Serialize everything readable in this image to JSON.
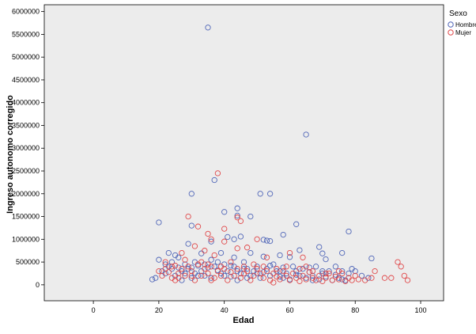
{
  "chart_data": {
    "type": "scatter",
    "xlabel": "Edad",
    "ylabel": "Ingreso autonomo corregido",
    "xlim": [
      -15,
      107
    ],
    "ylim": [
      -350000,
      6150000
    ],
    "xticks": [
      0,
      20,
      40,
      60,
      80,
      100
    ],
    "yticks": [
      0,
      500000,
      1000000,
      1500000,
      2000000,
      2500000,
      3000000,
      3500000,
      4000000,
      4500000,
      5000000,
      5500000,
      6000000
    ],
    "grid": false,
    "legend": {
      "title": "Sexo",
      "position": "top-right"
    },
    "colors": {
      "plot_bg": "#ececec",
      "axis": "#000000",
      "Hombre": "#5066b8",
      "Mujer": "#e0484a"
    },
    "series": [
      {
        "name": "Hombre",
        "points": [
          [
            35,
            5650000
          ],
          [
            65,
            3300000
          ],
          [
            37,
            2300000
          ],
          [
            30,
            2000000
          ],
          [
            51,
            2000000
          ],
          [
            54,
            2000000
          ],
          [
            44,
            1680000
          ],
          [
            40,
            1600000
          ],
          [
            44,
            1520000
          ],
          [
            48,
            1500000
          ],
          [
            20,
            1370000
          ],
          [
            30,
            1300000
          ],
          [
            62,
            1330000
          ],
          [
            78,
            1170000
          ],
          [
            58,
            1100000
          ],
          [
            41,
            1050000
          ],
          [
            43,
            1000000
          ],
          [
            45,
            1060000
          ],
          [
            52,
            990000
          ],
          [
            53,
            970000
          ],
          [
            54,
            960000
          ],
          [
            36,
            950000
          ],
          [
            29,
            900000
          ],
          [
            69,
            830000
          ],
          [
            63,
            760000
          ],
          [
            70,
            690000
          ],
          [
            23,
            700000
          ],
          [
            33,
            690000
          ],
          [
            48,
            700000
          ],
          [
            57,
            650000
          ],
          [
            25,
            650000
          ],
          [
            39,
            700000
          ],
          [
            43,
            600000
          ],
          [
            52,
            620000
          ],
          [
            60,
            610000
          ],
          [
            71,
            560000
          ],
          [
            76,
            700000
          ],
          [
            85,
            580000
          ],
          [
            18,
            120000
          ],
          [
            19,
            150000
          ],
          [
            21,
            300000
          ],
          [
            22,
            250000
          ],
          [
            23,
            400000
          ],
          [
            24,
            500000
          ],
          [
            25,
            200000
          ],
          [
            26,
            380000
          ],
          [
            27,
            300000
          ],
          [
            28,
            450000
          ],
          [
            29,
            350000
          ],
          [
            30,
            150000
          ],
          [
            31,
            500000
          ],
          [
            32,
            420000
          ],
          [
            33,
            300000
          ],
          [
            34,
            200000
          ],
          [
            35,
            380000
          ],
          [
            36,
            550000
          ],
          [
            38,
            320000
          ],
          [
            39,
            250000
          ],
          [
            40,
            450000
          ],
          [
            41,
            300000
          ],
          [
            42,
            180000
          ],
          [
            43,
            400000
          ],
          [
            44,
            300000
          ],
          [
            45,
            250000
          ],
          [
            46,
            500000
          ],
          [
            47,
            350000
          ],
          [
            48,
            200000
          ],
          [
            49,
            300000
          ],
          [
            50,
            400000
          ],
          [
            51,
            150000
          ],
          [
            52,
            280000
          ],
          [
            53,
            350000
          ],
          [
            54,
            200000
          ],
          [
            55,
            450000
          ],
          [
            56,
            300000
          ],
          [
            57,
            180000
          ],
          [
            58,
            380000
          ],
          [
            59,
            250000
          ],
          [
            60,
            120000
          ],
          [
            61,
            400000
          ],
          [
            62,
            300000
          ],
          [
            63,
            200000
          ],
          [
            64,
            350000
          ],
          [
            65,
            150000
          ],
          [
            66,
            280000
          ],
          [
            67,
            200000
          ],
          [
            68,
            400000
          ],
          [
            69,
            120000
          ],
          [
            70,
            250000
          ],
          [
            71,
            180000
          ],
          [
            72,
            300000
          ],
          [
            73,
            100000
          ],
          [
            74,
            220000
          ],
          [
            75,
            150000
          ],
          [
            76,
            300000
          ],
          [
            77,
            100000
          ],
          [
            78,
            250000
          ],
          [
            80,
            300000
          ],
          [
            82,
            200000
          ],
          [
            84,
            150000
          ],
          [
            20,
            550000
          ],
          [
            22,
            450000
          ],
          [
            24,
            350000
          ],
          [
            26,
            600000
          ],
          [
            28,
            250000
          ],
          [
            30,
            380000
          ],
          [
            32,
            200000
          ],
          [
            34,
            450000
          ],
          [
            36,
            150000
          ],
          [
            38,
            500000
          ],
          [
            40,
            200000
          ],
          [
            42,
            420000
          ],
          [
            44,
            100000
          ],
          [
            46,
            350000
          ],
          [
            50,
            250000
          ],
          [
            54,
            420000
          ],
          [
            58,
            150000
          ],
          [
            62,
            220000
          ],
          [
            66,
            380000
          ],
          [
            70,
            300000
          ],
          [
            74,
            400000
          ],
          [
            76,
            120000
          ],
          [
            79,
            350000
          ],
          [
            27,
            100000
          ],
          [
            31,
            250000
          ],
          [
            37,
            400000
          ],
          [
            47,
            150000
          ],
          [
            57,
            300000
          ],
          [
            67,
            100000
          ]
        ]
      },
      {
        "name": "Mujer",
        "points": [
          [
            38,
            2450000
          ],
          [
            29,
            1500000
          ],
          [
            44,
            1480000
          ],
          [
            45,
            1400000
          ],
          [
            32,
            1280000
          ],
          [
            40,
            1230000
          ],
          [
            35,
            1120000
          ],
          [
            36,
            1000000
          ],
          [
            50,
            1000000
          ],
          [
            40,
            950000
          ],
          [
            47,
            820000
          ],
          [
            44,
            800000
          ],
          [
            31,
            850000
          ],
          [
            27,
            700000
          ],
          [
            34,
            750000
          ],
          [
            60,
            700000
          ],
          [
            37,
            650000
          ],
          [
            53,
            600000
          ],
          [
            64,
            600000
          ],
          [
            93,
            500000
          ],
          [
            94,
            400000
          ],
          [
            95,
            200000
          ],
          [
            96,
            100000
          ],
          [
            86,
            300000
          ],
          [
            89,
            150000
          ],
          [
            91,
            150000
          ],
          [
            20,
            300000
          ],
          [
            21,
            200000
          ],
          [
            22,
            350000
          ],
          [
            23,
            280000
          ],
          [
            24,
            150000
          ],
          [
            25,
            420000
          ],
          [
            26,
            250000
          ],
          [
            27,
            350000
          ],
          [
            28,
            200000
          ],
          [
            29,
            400000
          ],
          [
            30,
            300000
          ],
          [
            31,
            100000
          ],
          [
            32,
            450000
          ],
          [
            33,
            200000
          ],
          [
            34,
            350000
          ],
          [
            35,
            250000
          ],
          [
            36,
            400000
          ],
          [
            37,
            150000
          ],
          [
            38,
            300000
          ],
          [
            39,
            200000
          ],
          [
            40,
            350000
          ],
          [
            41,
            100000
          ],
          [
            42,
            280000
          ],
          [
            43,
            200000
          ],
          [
            44,
            350000
          ],
          [
            45,
            150000
          ],
          [
            46,
            250000
          ],
          [
            47,
            300000
          ],
          [
            48,
            100000
          ],
          [
            49,
            200000
          ],
          [
            50,
            350000
          ],
          [
            51,
            250000
          ],
          [
            52,
            150000
          ],
          [
            53,
            300000
          ],
          [
            54,
            100000
          ],
          [
            55,
            250000
          ],
          [
            56,
            180000
          ],
          [
            57,
            120000
          ],
          [
            58,
            300000
          ],
          [
            59,
            200000
          ],
          [
            60,
            100000
          ],
          [
            61,
            250000
          ],
          [
            62,
            150000
          ],
          [
            63,
            80000
          ],
          [
            64,
            200000
          ],
          [
            65,
            120000
          ],
          [
            66,
            280000
          ],
          [
            67,
            150000
          ],
          [
            68,
            100000
          ],
          [
            69,
            200000
          ],
          [
            70,
            80000
          ],
          [
            71,
            150000
          ],
          [
            72,
            250000
          ],
          [
            73,
            100000
          ],
          [
            74,
            180000
          ],
          [
            75,
            120000
          ],
          [
            76,
            250000
          ],
          [
            77,
            80000
          ],
          [
            78,
            150000
          ],
          [
            79,
            100000
          ],
          [
            80,
            200000
          ],
          [
            81,
            120000
          ],
          [
            83,
            100000
          ],
          [
            85,
            150000
          ],
          [
            22,
            500000
          ],
          [
            24,
            400000
          ],
          [
            26,
            150000
          ],
          [
            28,
            550000
          ],
          [
            30,
            200000
          ],
          [
            33,
            500000
          ],
          [
            35,
            450000
          ],
          [
            39,
            400000
          ],
          [
            42,
            500000
          ],
          [
            46,
            400000
          ],
          [
            49,
            450000
          ],
          [
            52,
            400000
          ],
          [
            56,
            350000
          ],
          [
            59,
            400000
          ],
          [
            63,
            350000
          ],
          [
            67,
            300000
          ],
          [
            71,
            250000
          ],
          [
            75,
            300000
          ],
          [
            25,
            100000
          ],
          [
            36,
            100000
          ],
          [
            55,
            50000
          ],
          [
            65,
            400000
          ]
        ]
      }
    ]
  }
}
